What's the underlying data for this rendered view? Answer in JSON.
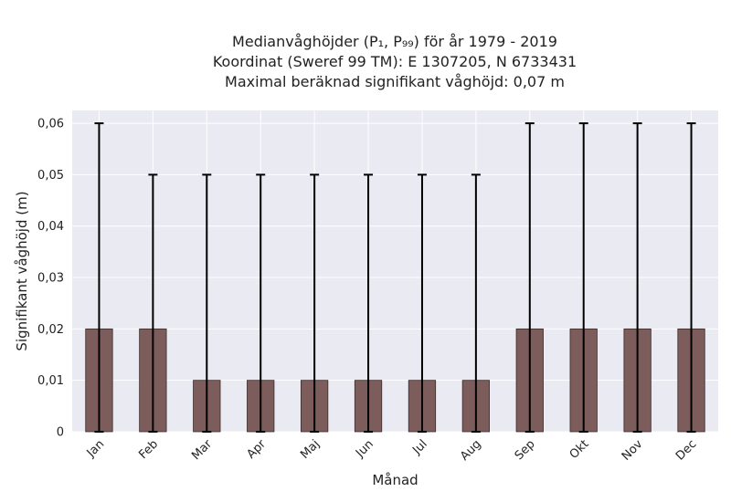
{
  "chart_data": {
    "type": "bar",
    "title_lines": [
      "Medianvåghöjder (P₁, P₉₉) för år 1979 - 2019",
      "Koordinat (Sweref 99 TM): E 1307205, N 6733431",
      "Maximal beräknad signifikant våghöjd: 0,07 m"
    ],
    "xlabel": "Månad",
    "ylabel": "Signifikant våghöjd (m)",
    "categories": [
      "Jan",
      "Feb",
      "Mar",
      "Apr",
      "Maj",
      "Jun",
      "Jul",
      "Aug",
      "Sep",
      "Okt",
      "Nov",
      "Dec"
    ],
    "values": [
      0.02,
      0.02,
      0.01,
      0.01,
      0.01,
      0.01,
      0.01,
      0.01,
      0.02,
      0.02,
      0.02,
      0.02
    ],
    "p1": [
      0,
      0,
      0,
      0,
      0,
      0,
      0,
      0,
      0,
      0,
      0,
      0
    ],
    "p99": [
      0.06,
      0.05,
      0.05,
      0.05,
      0.05,
      0.05,
      0.05,
      0.05,
      0.06,
      0.06,
      0.06,
      0.06
    ],
    "ylim": [
      0,
      0.0625
    ],
    "yticks": [
      0,
      0.01,
      0.02,
      0.03,
      0.04,
      0.05,
      0.06
    ],
    "ytick_labels": [
      "0",
      "0,01",
      "0,02",
      "0,03",
      "0,04",
      "0,05",
      "0,06"
    ],
    "grid": true,
    "colors": {
      "bar": "#7d5c5c",
      "bar_edge": "#3a2a2a",
      "error_bar": "#000000",
      "plot_background": "#eaeaf2",
      "grid": "#ffffff"
    }
  }
}
